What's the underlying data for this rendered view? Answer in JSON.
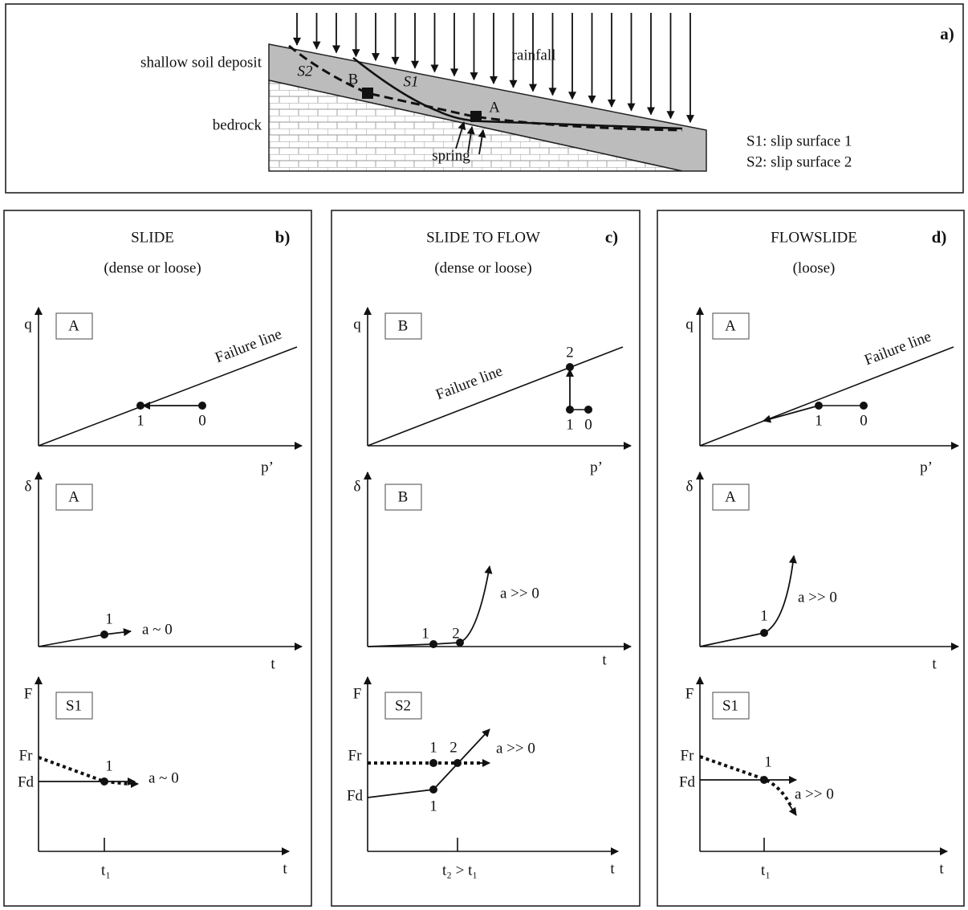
{
  "panel_a": {
    "label": "a)",
    "soil_label": "shallow soil deposit",
    "bedrock_label": "bedrock",
    "rainfall_label": "rainfall",
    "s1": "S1",
    "s2": "S2",
    "point_a": "A",
    "point_b": "B",
    "spring_label": "spring",
    "legend": [
      "S1: slip surface 1",
      "S2: slip surface 2"
    ]
  },
  "panels": [
    {
      "label": "b)",
      "title": "SLIDE",
      "subtitle": "(dense or loose)",
      "stress_path": {
        "y_label": "q",
        "x_label": "p’",
        "box": "A",
        "failure_line": "Failure line",
        "points": [
          "1",
          "0"
        ]
      },
      "displacement": {
        "y_label": "δ",
        "x_label": "t",
        "box": "A",
        "points": [
          "1"
        ],
        "annotation": "a ~ 0"
      },
      "safety_factor": {
        "y_label": "F",
        "x_label": "t",
        "box": "S1",
        "levels": [
          "Fr",
          "Fd"
        ],
        "points": [
          "1"
        ],
        "time_label": "t₁",
        "annotation": "a ~ 0"
      }
    },
    {
      "label": "c)",
      "title": "SLIDE TO FLOW",
      "subtitle": "(dense or loose)",
      "stress_path": {
        "y_label": "q",
        "x_label": "p’",
        "box": "B",
        "failure_line": "Failure line",
        "points": [
          "1",
          "0",
          "2"
        ]
      },
      "displacement": {
        "y_label": "δ",
        "x_label": "t",
        "box": "B",
        "points": [
          "1",
          "2"
        ],
        "annotation": "a >> 0"
      },
      "safety_factor": {
        "y_label": "F",
        "x_label": "t",
        "box": "S2",
        "levels": [
          "Fr",
          "Fd"
        ],
        "points": [
          "1",
          "2",
          "1"
        ],
        "time_label": "t₂ > t₁",
        "annotation": "a >> 0"
      }
    },
    {
      "label": "d)",
      "title": "FLOWSLIDE",
      "subtitle": "(loose)",
      "stress_path": {
        "y_label": "q",
        "x_label": "p’",
        "box": "A",
        "failure_line": "Failure line",
        "points": [
          "1",
          "0"
        ]
      },
      "displacement": {
        "y_label": "δ",
        "x_label": "t",
        "box": "A",
        "points": [
          "1"
        ],
        "annotation": "a >> 0"
      },
      "safety_factor": {
        "y_label": "F",
        "x_label": "t",
        "box": "S1",
        "levels": [
          "Fr",
          "Fd"
        ],
        "points": [
          "1"
        ],
        "time_label": "t₁",
        "annotation": "a >> 0"
      }
    }
  ]
}
